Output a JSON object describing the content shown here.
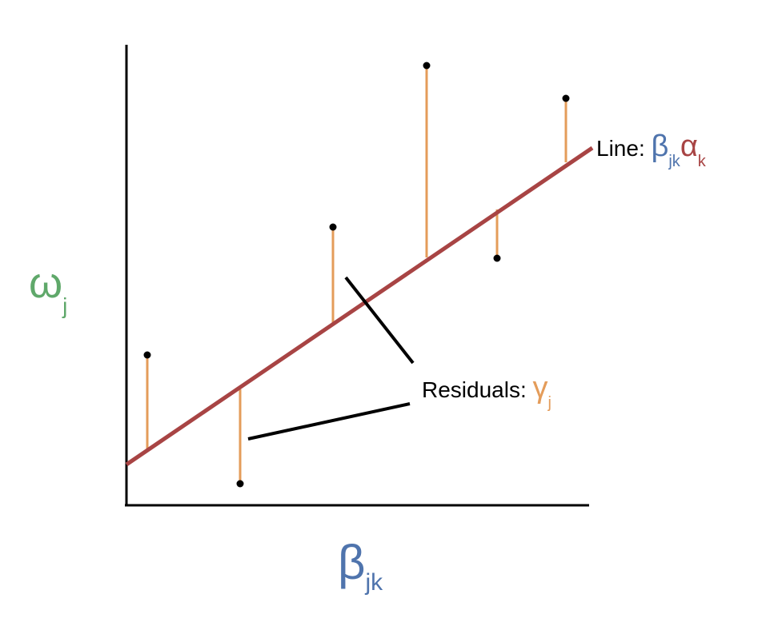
{
  "y_label": {
    "main": "ω",
    "sub": "j"
  },
  "x_label": {
    "main": "β",
    "sub": "jk"
  },
  "line_label": {
    "prefix": "Line: ",
    "beta": "β",
    "beta_sub": "jk",
    "alpha": "α",
    "alpha_sub": "k"
  },
  "residual_label": {
    "prefix": "Residuals: ",
    "gamma": "γ",
    "gamma_sub": "j"
  },
  "colors": {
    "axis": "#000000",
    "fit_line": "#a84444",
    "residual": "#e49c5a",
    "point": "#000000",
    "omega": "#5fa86a",
    "beta": "#4f74ad",
    "alpha": "#a84444",
    "gamma": "#e49c5a"
  }
}
